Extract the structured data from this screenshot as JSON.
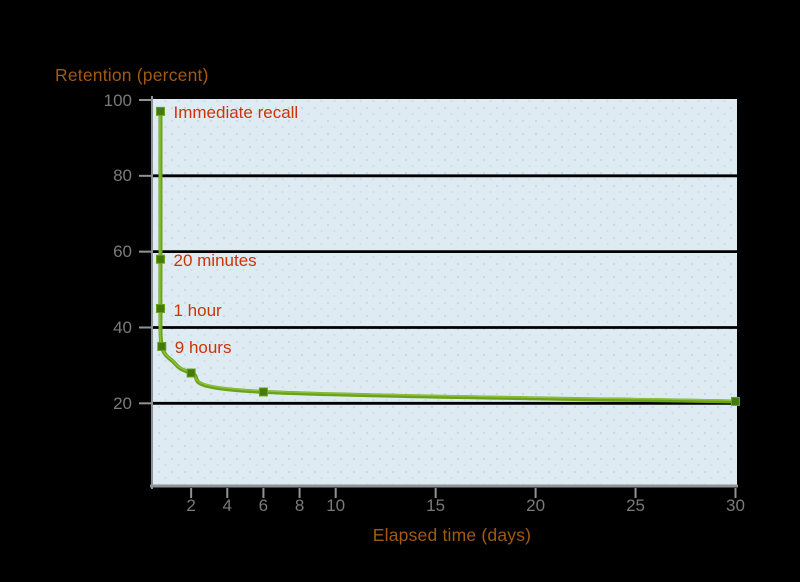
{
  "chart_data": {
    "type": "line",
    "title": "",
    "ylabel": "Retention (percent)",
    "xlabel": "Elapsed time (days)",
    "y_ticks": [
      100,
      80,
      60,
      40,
      20
    ],
    "x_ticks": [
      2,
      4,
      6,
      8,
      10,
      15,
      20,
      25,
      30
    ],
    "gridlines_at_y": [
      80,
      60,
      40,
      20
    ],
    "xlim": [
      0,
      30
    ],
    "ylim": [
      0,
      100
    ],
    "legend": "none",
    "series": [
      {
        "name": "retention",
        "marker": "square",
        "points": [
          {
            "days": 0,
            "retention": 97,
            "label": "Immediate recall"
          },
          {
            "days": 0.0139,
            "retention": 58,
            "label": "20 minutes"
          },
          {
            "days": 0.0417,
            "retention": 45,
            "label": "1 hour"
          },
          {
            "days": 0.375,
            "retention": 35,
            "label": "9 hours"
          },
          {
            "days": 1,
            "retention": 31,
            "marker": false
          },
          {
            "days": 2,
            "retention": 28
          },
          {
            "days": 6,
            "retention": 23
          },
          {
            "days": 30,
            "retention": 20.5
          }
        ]
      }
    ],
    "colors": {
      "page_background": "#000000",
      "plot_background": "#dfebf3",
      "plot_dots": "#c6d8e6",
      "gridline": "#000000",
      "axis_line": "#8e9397",
      "tick_label": "#7a7a7a",
      "axis_title": "#a35a10",
      "annotation": "#cd3307",
      "curve": "#6ba318",
      "curve_highlight": "#93c243",
      "marker_fill": "#45790d",
      "marker_stroke": "#69a31b"
    }
  }
}
